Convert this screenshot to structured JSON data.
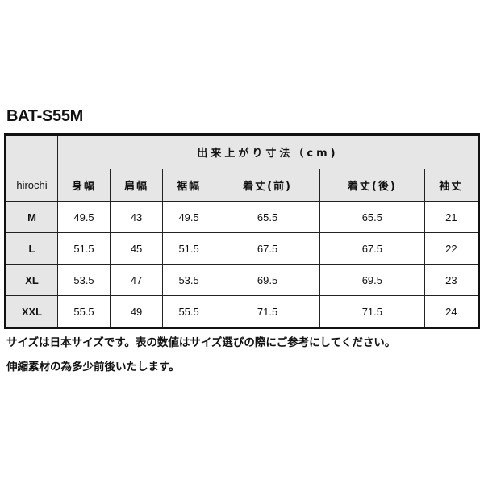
{
  "title": "BAT-S55M",
  "table": {
    "corner_label": "hirochi",
    "group_header": "出来上がり寸法（cm)",
    "columns": [
      "身幅",
      "肩幅",
      "裾幅",
      "着丈(前)",
      "着丈(後)",
      "袖丈"
    ],
    "rows": [
      {
        "size": "M",
        "values": [
          "49.5",
          "43",
          "49.5",
          "65.5",
          "65.5",
          "21"
        ]
      },
      {
        "size": "L",
        "values": [
          "51.5",
          "45",
          "51.5",
          "67.5",
          "67.5",
          "22"
        ]
      },
      {
        "size": "XL",
        "values": [
          "53.5",
          "47",
          "53.5",
          "69.5",
          "69.5",
          "23"
        ]
      },
      {
        "size": "XXL",
        "values": [
          "55.5",
          "49",
          "55.5",
          "71.5",
          "71.5",
          "24"
        ]
      }
    ]
  },
  "notes": [
    "サイズは日本サイズです。表の数値はサイズ選びの際にご参考にしてください。",
    "伸縮素材の為多少前後いたします。"
  ]
}
